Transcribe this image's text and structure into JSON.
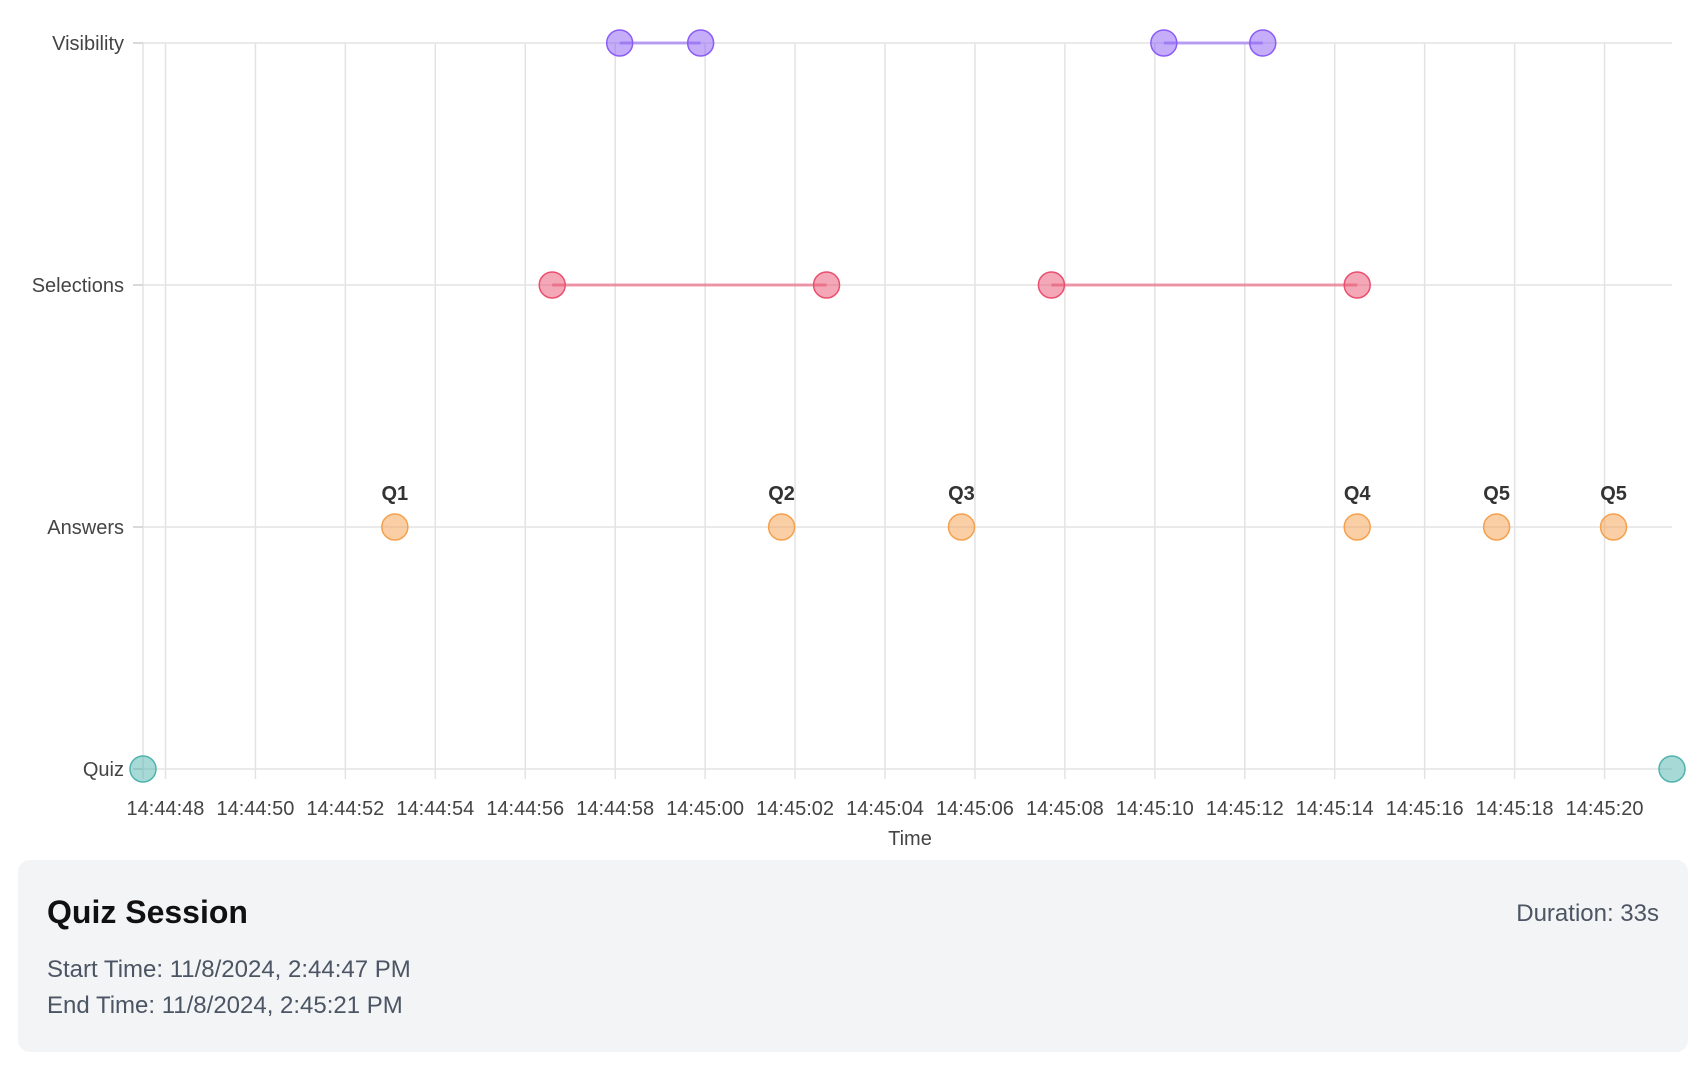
{
  "chart_data": {
    "type": "scatter",
    "categories": [
      "Quiz",
      "Answers",
      "Selections",
      "Visibility"
    ],
    "xlabel": "Time",
    "x_ticks": [
      "14:44:48",
      "14:44:50",
      "14:44:52",
      "14:44:54",
      "14:44:56",
      "14:44:58",
      "14:45:00",
      "14:45:02",
      "14:45:04",
      "14:45:06",
      "14:45:08",
      "14:45:10",
      "14:45:12",
      "14:45:14",
      "14:45:16",
      "14:45:18",
      "14:45:20"
    ],
    "xlim": [
      "14:44:47.5",
      "14:45:21.5"
    ],
    "grid": true,
    "colors": {
      "Quiz": "#4fb3ad",
      "Answers": "#f6a04d",
      "Selections": "#ea4f6e",
      "Visibility": "#8b5cf6"
    },
    "series": [
      {
        "category": "Quiz",
        "points": [
          {
            "x": "14:44:47.5"
          },
          {
            "x": "14:45:21.5"
          }
        ]
      },
      {
        "category": "Answers",
        "points": [
          {
            "x": "14:44:53.1",
            "label": "Q1"
          },
          {
            "x": "14:45:01.7",
            "label": "Q2"
          },
          {
            "x": "14:45:05.7",
            "label": "Q3"
          },
          {
            "x": "14:45:14.5",
            "label": "Q4"
          },
          {
            "x": "14:45:17.6",
            "label": "Q5"
          },
          {
            "x": "14:45:20.2",
            "label": "Q5"
          }
        ]
      },
      {
        "category": "Selections",
        "segments": [
          {
            "start": "14:44:56.6",
            "end": "14:45:02.7"
          },
          {
            "start": "14:45:07.7",
            "end": "14:45:14.5"
          }
        ]
      },
      {
        "category": "Visibility",
        "segments": [
          {
            "start": "14:44:58.1",
            "end": "14:44:59.9"
          },
          {
            "start": "14:45:10.2",
            "end": "14:45:12.4"
          }
        ]
      }
    ]
  },
  "session": {
    "title": "Quiz Session",
    "duration": "Duration: 33s",
    "start": "Start Time: 11/8/2024, 2:44:47 PM",
    "end": "End Time: 11/8/2024, 2:45:21 PM"
  }
}
